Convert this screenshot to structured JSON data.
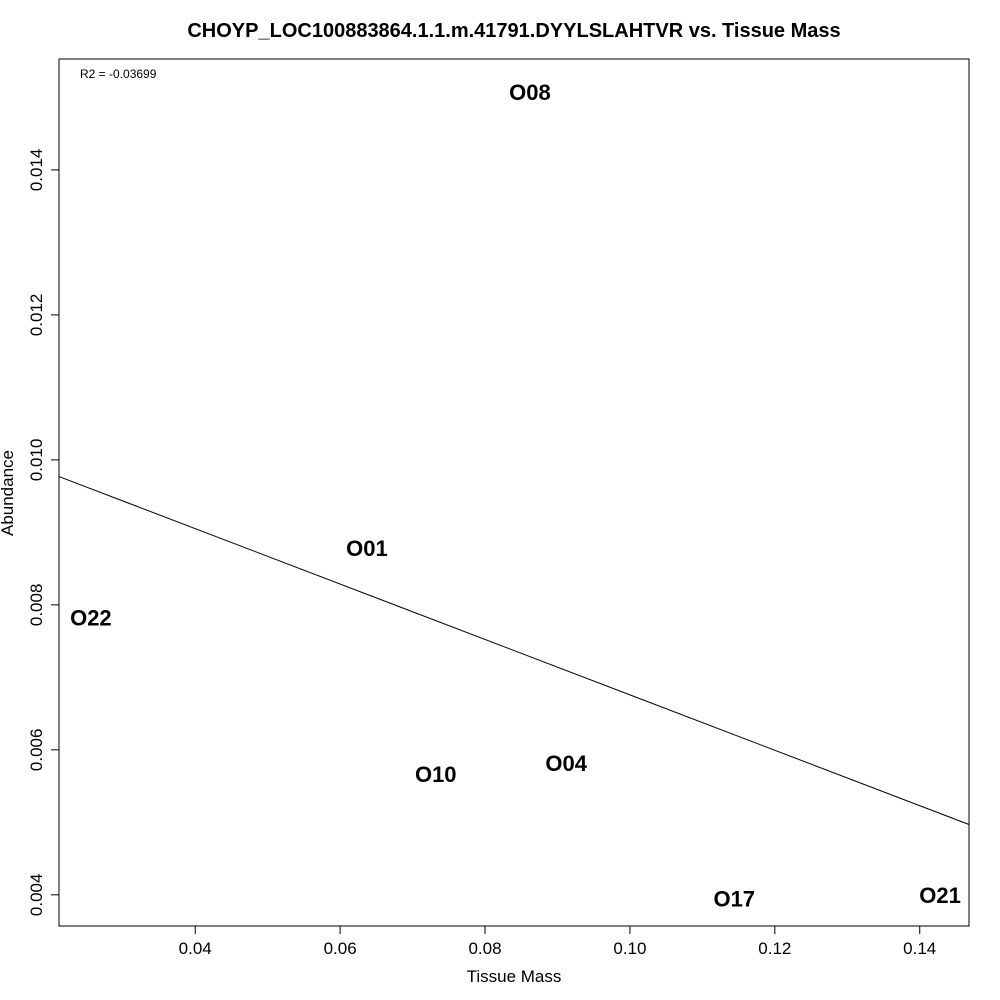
{
  "chart_data": {
    "type": "scatter",
    "title": "CHOYP_LOC100883864.1.1.m.41791.DYYLSLAHTVR vs. Tissue Mass",
    "xlabel": "Tissue Mass",
    "ylabel": "Abundance",
    "annotation": "R2 = -0.03699",
    "xlim": [
      0.0212,
      0.1468
    ],
    "ylim": [
      0.00357,
      0.01553
    ],
    "xticks": [
      0.04,
      0.06,
      0.08,
      0.1,
      0.12,
      0.14
    ],
    "xtick_labels": [
      "0.04",
      "0.06",
      "0.08",
      "0.10",
      "0.12",
      "0.14"
    ],
    "yticks": [
      0.004,
      0.006,
      0.008,
      0.01,
      0.012,
      0.014
    ],
    "ytick_labels": [
      "0.004",
      "0.006",
      "0.008",
      "0.010",
      "0.012",
      "0.014"
    ],
    "points": [
      {
        "label": "O08",
        "x": 0.0862,
        "y": 0.01507
      },
      {
        "label": "O01",
        "x": 0.0637,
        "y": 0.00878
      },
      {
        "label": "O22",
        "x": 0.0256,
        "y": 0.00782
      },
      {
        "label": "O10",
        "x": 0.0732,
        "y": 0.00566
      },
      {
        "label": "O04",
        "x": 0.0912,
        "y": 0.00581
      },
      {
        "label": "O17",
        "x": 0.1144,
        "y": 0.00394
      },
      {
        "label": "O21",
        "x": 0.1428,
        "y": 0.00399
      }
    ],
    "fit_line": {
      "x": [
        0.0212,
        0.1468
      ],
      "y": [
        0.00977,
        0.00497
      ]
    },
    "grid": false,
    "legend": "none"
  }
}
